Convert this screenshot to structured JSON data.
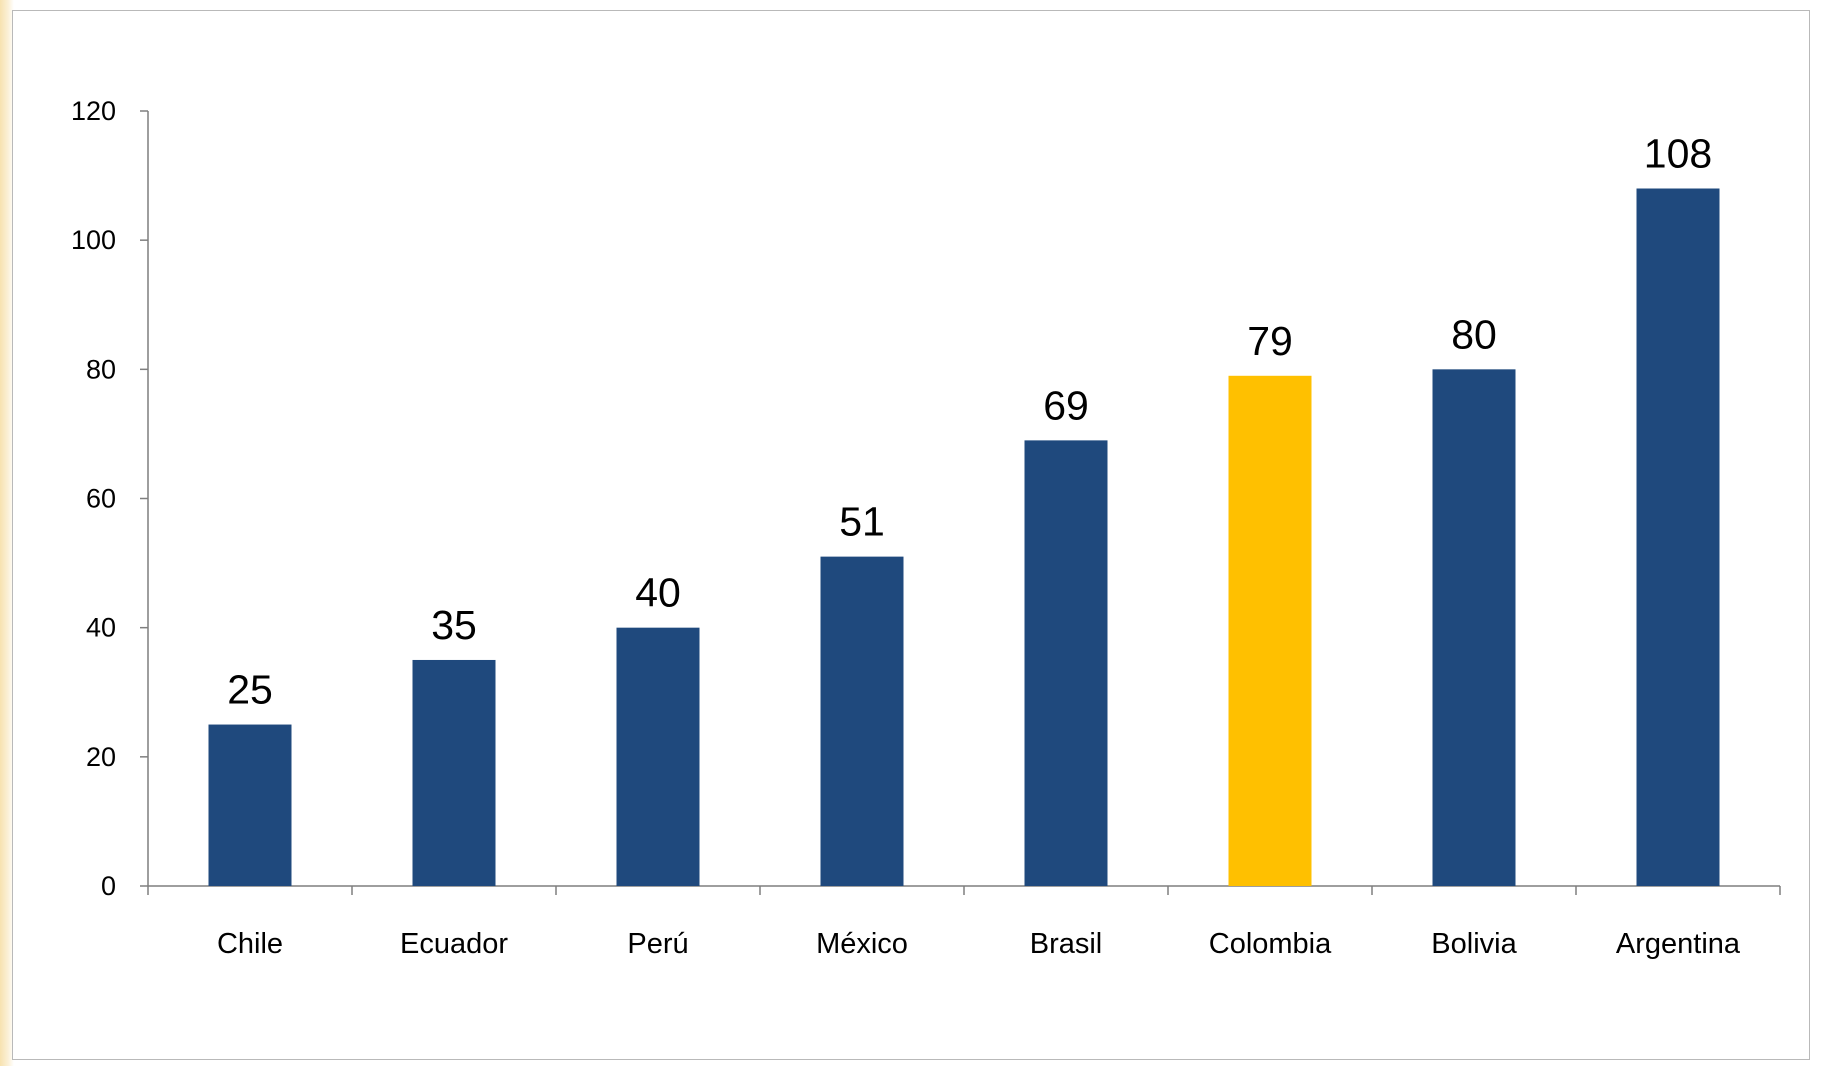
{
  "colors": {
    "bar_default": "#1f497d",
    "bar_highlight": "#ffc000",
    "axis": "#7f7f7f",
    "panel_border": "#b9b9b9"
  },
  "chart_data": {
    "type": "bar",
    "categories": [
      "Chile",
      "Ecuador",
      "Perú",
      "México",
      "Brasil",
      "Colombia",
      "Bolivia",
      "Argentina"
    ],
    "values": [
      25,
      35,
      40,
      51,
      69,
      79,
      80,
      108
    ],
    "data_labels": [
      "25",
      "35",
      "40",
      "51",
      "69",
      "79",
      "80",
      "108"
    ],
    "highlight_category": "Colombia",
    "ylim": [
      0,
      120
    ],
    "yticks": [
      0,
      20,
      40,
      60,
      80,
      100,
      120
    ],
    "grid": false,
    "legend": "none"
  }
}
